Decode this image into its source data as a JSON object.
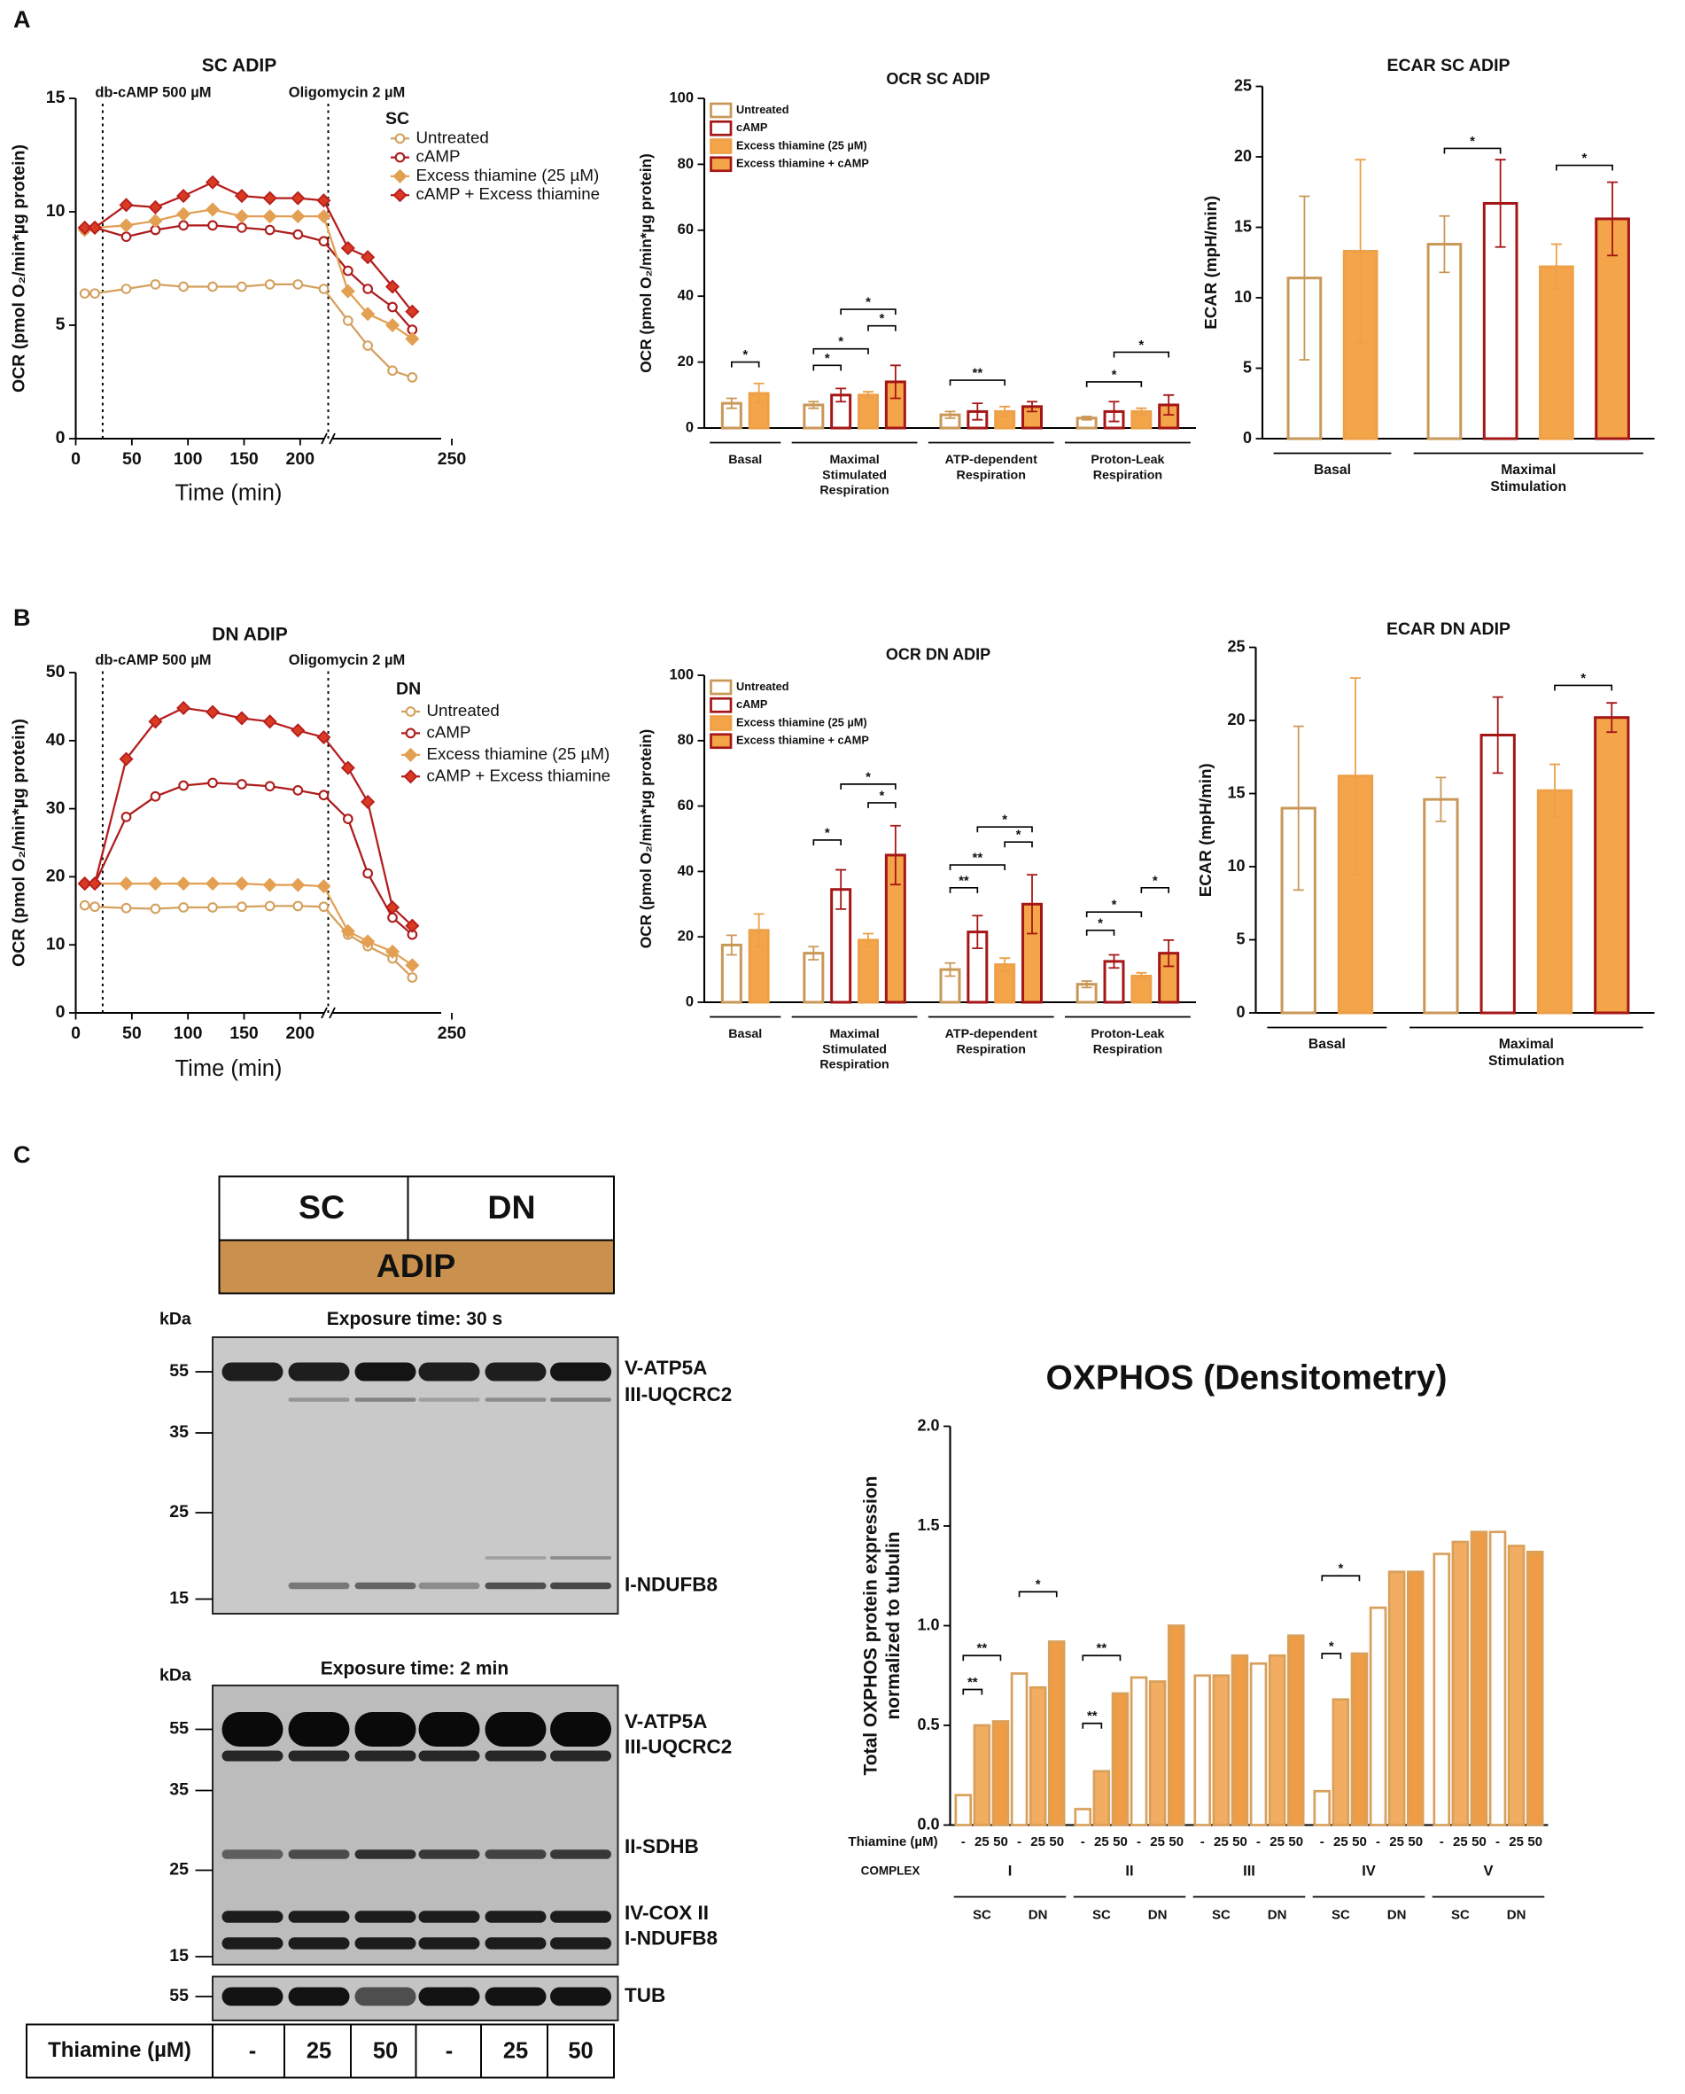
{
  "panel_labels": [
    "A",
    "B",
    "C"
  ],
  "chart_data": [
    {
      "type": "line",
      "title": "SC ADIP",
      "ylabel": "OCR (pmol O₂/min*µg protein)",
      "xlabel": "Time (min)",
      "legend_title": "SC",
      "x": [
        8,
        17,
        45,
        71,
        96,
        122,
        148,
        173,
        198,
        221,
        229,
        233,
        238,
        242
      ],
      "xlim": [
        0,
        250
      ],
      "xbreak": 225,
      "xticks": [
        0,
        50,
        100,
        150,
        200,
        250
      ],
      "ylim": [
        0,
        15
      ],
      "yticks": [
        0,
        5,
        10,
        15
      ],
      "annotations": [
        {
          "text": "db-cAMP 500 µM",
          "x": 24
        },
        {
          "text": "Oligomycin 2 µM",
          "x": 225
        }
      ],
      "series": [
        {
          "name": "Untreated",
          "color": "#d4a05e",
          "marker": "circle",
          "fill": "#ffffff",
          "values": [
            6.4,
            6.4,
            6.6,
            6.8,
            6.7,
            6.7,
            6.7,
            6.8,
            6.8,
            6.6,
            5.2,
            4.1,
            3.0,
            2.7
          ]
        },
        {
          "name": "cAMP",
          "color": "#ad1b1b",
          "marker": "circle",
          "fill": "#ffffff",
          "values": [
            9.2,
            9.3,
            8.9,
            9.2,
            9.4,
            9.4,
            9.3,
            9.2,
            9.0,
            8.7,
            7.4,
            6.6,
            5.8,
            4.8
          ]
        },
        {
          "name": "Excess thiamine (25 µM)",
          "color": "#e39f52",
          "marker": "diamond",
          "fill": "#e39f52",
          "values": [
            9.2,
            9.3,
            9.4,
            9.6,
            9.9,
            10.1,
            9.8,
            9.8,
            9.8,
            9.8,
            6.5,
            5.5,
            5.0,
            4.4
          ]
        },
        {
          "name": "cAMP + Excess thiamine",
          "color": "#b51d1d",
          "marker": "diamond",
          "fill": "#d93a22",
          "values": [
            9.3,
            9.3,
            10.3,
            10.2,
            10.7,
            11.3,
            10.7,
            10.6,
            10.6,
            10.5,
            8.4,
            8.0,
            6.7,
            5.6
          ]
        }
      ]
    },
    {
      "type": "bar",
      "title": "OCR SC ADIP",
      "ylabel": "OCR (pmol O₂/min*µg protein)",
      "legend": "upper left",
      "categories": [
        "Basal",
        "Maximal\nStimulated\nRespiration",
        "ATP-dependent\nRespiration",
        "Proton-Leak\nRespiration"
      ],
      "ylim": [
        0,
        100
      ],
      "yticks": [
        0,
        20,
        40,
        60,
        80,
        100
      ],
      "series": [
        {
          "name": "Untreated",
          "color": "#c99858",
          "fill": "#ffffff",
          "values": [
            7.5,
            7,
            4,
            3
          ],
          "errors": [
            1.5,
            1,
            1,
            0.5
          ]
        },
        {
          "name": "cAMP",
          "color": "#a51616",
          "fill": "#ffffff",
          "values": [
            null,
            10,
            5,
            5
          ],
          "errors": [
            null,
            2,
            2.5,
            3
          ]
        },
        {
          "name": "Excess thiamine (25 µM)",
          "color": "#eda048",
          "fill": "#f4a54a",
          "values": [
            10.5,
            10,
            5,
            5
          ],
          "errors": [
            3,
            1,
            1.5,
            1
          ]
        },
        {
          "name": "Excess thiamine + cAMP",
          "color": "#a51616",
          "fill": "#f4a54a",
          "values": [
            null,
            14,
            6.5,
            7
          ],
          "errors": [
            null,
            5,
            1.5,
            3
          ]
        }
      ],
      "significance": [
        {
          "label": "*",
          "category": 0,
          "series": [
            0,
            2
          ],
          "y": 20
        },
        {
          "label": "*",
          "category": 1,
          "series": [
            0,
            1
          ],
          "y": 19
        },
        {
          "label": "*",
          "category": 1,
          "series": [
            0,
            2
          ],
          "y": 24
        },
        {
          "label": "*",
          "category": 1,
          "series": [
            2,
            3
          ],
          "y": 31
        },
        {
          "label": "*",
          "category": 1,
          "series": [
            1,
            3
          ],
          "y": 36
        },
        {
          "label": "**",
          "category": 2,
          "series": [
            0,
            2
          ],
          "y": 14.5
        },
        {
          "label": "*",
          "category": 3,
          "series": [
            0,
            2
          ],
          "y": 14
        },
        {
          "label": "*",
          "category": 3,
          "series": [
            1,
            3
          ],
          "y": 23
        }
      ]
    },
    {
      "type": "bar",
      "title": "ECAR SC ADIP",
      "ylabel": "ECAR (mpH/min)",
      "categories": [
        "Basal",
        "Maximal\nStimulation"
      ],
      "ylim": [
        0,
        25
      ],
      "yticks": [
        0,
        5,
        10,
        15,
        20,
        25
      ],
      "series": [
        {
          "color": "#c99858",
          "fill": "#ffffff",
          "values": [
            11.4,
            13.8
          ],
          "errors": [
            5.8,
            2.0
          ]
        },
        {
          "color": "#a51616",
          "fill": "#ffffff",
          "values": [
            null,
            16.7
          ],
          "errors": [
            null,
            3.1
          ]
        },
        {
          "color": "#eda048",
          "fill": "#f4a54a",
          "values": [
            13.3,
            12.2
          ],
          "errors": [
            6.5,
            1.6
          ]
        },
        {
          "color": "#a51616",
          "fill": "#f4a54a",
          "values": [
            null,
            15.6
          ],
          "errors": [
            null,
            2.6
          ]
        }
      ],
      "significance": [
        {
          "label": "*",
          "category": 1,
          "series": [
            0,
            1
          ],
          "y": 20.6
        },
        {
          "label": "*",
          "category": 1,
          "series": [
            2,
            3
          ],
          "y": 19.4
        }
      ]
    },
    {
      "type": "line",
      "title": "DN ADIP",
      "ylabel": "OCR (pmol O₂/min*µg protein)",
      "xlabel": "Time (min)",
      "legend_title": "DN",
      "x": [
        8,
        17,
        45,
        71,
        96,
        122,
        148,
        173,
        198,
        221,
        229,
        233,
        238,
        242
      ],
      "xlim": [
        0,
        250
      ],
      "xbreak": 225,
      "xticks": [
        0,
        50,
        100,
        150,
        200,
        250
      ],
      "ylim": [
        0,
        50
      ],
      "yticks": [
        0,
        10,
        20,
        30,
        40,
        50
      ],
      "annotations": [
        {
          "text": "db-cAMP 500 µM",
          "x": 24
        },
        {
          "text": "Oligomycin 2 µM",
          "x": 225
        }
      ],
      "series": [
        {
          "name": "Untreated",
          "color": "#d4a05e",
          "marker": "circle",
          "fill": "#ffffff",
          "values": [
            15.8,
            15.6,
            15.4,
            15.3,
            15.5,
            15.5,
            15.6,
            15.7,
            15.7,
            15.6,
            11.5,
            9.8,
            8.0,
            5.2
          ]
        },
        {
          "name": "cAMP",
          "color": "#ad1b1b",
          "marker": "circle",
          "fill": "#ffffff",
          "values": [
            19,
            19,
            28.8,
            31.8,
            33.4,
            33.8,
            33.6,
            33.3,
            32.7,
            32.0,
            28.5,
            20.5,
            14.0,
            11.5
          ]
        },
        {
          "name": "Excess thiamine (25 µM)",
          "color": "#e39f52",
          "marker": "diamond",
          "fill": "#e39f52",
          "values": [
            19,
            19,
            19,
            19,
            19,
            19,
            19,
            18.8,
            18.8,
            18.6,
            12.0,
            10.5,
            9.0,
            7.0
          ]
        },
        {
          "name": "cAMP + Excess thiamine",
          "color": "#b51d1d",
          "marker": "diamond",
          "fill": "#d93a22",
          "values": [
            19,
            19,
            37.3,
            42.8,
            44.8,
            44.2,
            43.3,
            42.8,
            41.5,
            40.5,
            36.0,
            31.0,
            15.5,
            12.8
          ]
        }
      ]
    },
    {
      "type": "bar",
      "title": "OCR DN ADIP",
      "ylabel": "OCR (pmol O₂/min*µg protein)",
      "legend": "upper left",
      "categories": [
        "Basal",
        "Maximal\nStimulated\nRespiration",
        "ATP-dependent\nRespiration",
        "Proton-Leak\nRespiration"
      ],
      "ylim": [
        0,
        100
      ],
      "yticks": [
        0,
        20,
        40,
        60,
        80,
        100
      ],
      "series": [
        {
          "name": "Untreated",
          "color": "#c99858",
          "fill": "#ffffff",
          "values": [
            17.5,
            15,
            10,
            5.5
          ],
          "errors": [
            3,
            2,
            2,
            1
          ]
        },
        {
          "name": "cAMP",
          "color": "#a51616",
          "fill": "#ffffff",
          "values": [
            null,
            34.5,
            21.5,
            12.5
          ],
          "errors": [
            null,
            6,
            5,
            2
          ]
        },
        {
          "name": "Excess thiamine (25 µM)",
          "color": "#eda048",
          "fill": "#f4a54a",
          "values": [
            22,
            19,
            11.5,
            8
          ],
          "errors": [
            5,
            2,
            2,
            1
          ]
        },
        {
          "name": "Excess thiamine + cAMP",
          "color": "#a51616",
          "fill": "#f4a54a",
          "values": [
            null,
            45,
            30,
            15
          ],
          "errors": [
            null,
            9,
            9,
            4
          ]
        }
      ],
      "significance": [
        {
          "label": "*",
          "category": 1,
          "series": [
            0,
            1
          ],
          "y": 49.6
        },
        {
          "label": "*",
          "category": 1,
          "series": [
            2,
            3
          ],
          "y": 61
        },
        {
          "label": "*",
          "category": 1,
          "series": [
            1,
            3
          ],
          "y": 66.7
        },
        {
          "label": "**",
          "category": 2,
          "series": [
            0,
            1
          ],
          "y": 35
        },
        {
          "label": "**",
          "category": 2,
          "series": [
            0,
            2
          ],
          "y": 42
        },
        {
          "label": "*",
          "category": 2,
          "series": [
            2,
            3
          ],
          "y": 49
        },
        {
          "label": "*",
          "category": 2,
          "series": [
            1,
            3
          ],
          "y": 53.6
        },
        {
          "label": "*",
          "category": 3,
          "series": [
            0,
            1
          ],
          "y": 22
        },
        {
          "label": "*",
          "category": 3,
          "series": [
            0,
            2
          ],
          "y": 27.6
        },
        {
          "label": "*",
          "category": 3,
          "series": [
            2,
            3
          ],
          "y": 35
        }
      ]
    },
    {
      "type": "bar",
      "title": "ECAR DN ADIP",
      "ylabel": "ECAR (mpH/min)",
      "categories": [
        "Basal",
        "Maximal\nStimulation"
      ],
      "ylim": [
        0,
        25
      ],
      "yticks": [
        0,
        5,
        10,
        15,
        20,
        25
      ],
      "series": [
        {
          "color": "#c99858",
          "fill": "#ffffff",
          "values": [
            14,
            14.6
          ],
          "errors": [
            5.6,
            1.5
          ]
        },
        {
          "color": "#a51616",
          "fill": "#ffffff",
          "values": [
            null,
            19
          ],
          "errors": [
            null,
            2.6
          ]
        },
        {
          "color": "#eda048",
          "fill": "#f4a54a",
          "values": [
            16.2,
            15.2
          ],
          "errors": [
            6.7,
            1.8
          ]
        },
        {
          "color": "#a51616",
          "fill": "#f4a54a",
          "values": [
            null,
            20.2
          ],
          "errors": [
            null,
            1
          ]
        }
      ],
      "significance": [
        {
          "label": "*",
          "category": 1,
          "series": [
            2,
            3
          ],
          "y": 22.4
        }
      ]
    },
    {
      "type": "grouped_bar",
      "title": "OXPHOS (Densitometry)",
      "ylabel": "Total OXPHOS protein expression\nnormalized to tubulin",
      "dose_label": "Thiamine (µM)",
      "doses": [
        "-",
        "25",
        "50"
      ],
      "category_label": "COMPLEX",
      "groups": [
        "SC",
        "DN"
      ],
      "categories": [
        "I",
        "II",
        "III",
        "IV",
        "V"
      ],
      "ylim": [
        0,
        2
      ],
      "yticks": [
        {
          "value": 0,
          "label": "0.0"
        },
        0.5,
        {
          "value": 1,
          "label": "1.0"
        },
        1.5,
        {
          "value": 2,
          "label": "2.0"
        }
      ],
      "series": [
        {
          "color": "#d9a05b",
          "fill": "#ffffff",
          "values": [
            0.15,
            0.08,
            0.75,
            0.17,
            1.36
          ]
        },
        {
          "color": "#d9a05b",
          "fill": "#f2ad62",
          "values": [
            0.5,
            0.27,
            0.75,
            0.63,
            1.42
          ]
        },
        {
          "color": "#d9a05b",
          "fill": "#ee9c45",
          "values": [
            0.52,
            0.66,
            0.85,
            0.86,
            1.47
          ]
        },
        {
          "color": "#d9a05b",
          "fill": "#ffffff",
          "values": [
            0.76,
            0.74,
            0.81,
            1.09,
            1.47
          ]
        },
        {
          "color": "#d9a05b",
          "fill": "#f2ad62",
          "values": [
            0.69,
            0.72,
            0.85,
            1.27,
            1.4
          ]
        },
        {
          "color": "#d9a05b",
          "fill": "#ee9c45",
          "values": [
            0.92,
            1.0,
            0.95,
            1.27,
            1.37
          ]
        }
      ],
      "significance": [
        {
          "label": "**",
          "category": 0,
          "series": [
            0,
            1
          ],
          "y": 0.68
        },
        {
          "label": "**",
          "category": 0,
          "series": [
            0,
            2
          ],
          "y": 0.85
        },
        {
          "label": "*",
          "category": 0,
          "series": [
            3,
            5
          ],
          "y": 1.17
        },
        {
          "label": "**",
          "category": 1,
          "series": [
            0,
            1
          ],
          "y": 0.51
        },
        {
          "label": "**",
          "category": 1,
          "series": [
            0,
            2
          ],
          "y": 0.85
        },
        {
          "label": "*",
          "category": 3,
          "series": [
            0,
            1
          ],
          "y": 0.86
        },
        {
          "label": "*",
          "category": 3,
          "series": [
            0,
            2
          ],
          "y": 1.25
        }
      ]
    }
  ],
  "blot": {
    "header": [
      "SC",
      "DN"
    ],
    "tissue": "ADIP",
    "kda": "kDa",
    "panels": [
      {
        "title": "Exposure time: 30 s",
        "markers": [
          55,
          35,
          25,
          15
        ],
        "bands": [
          "V-ATP5A",
          "III-UQCRC2",
          "I-NDUFB8"
        ]
      },
      {
        "title": "Exposure time: 2 min",
        "markers": [
          55,
          35,
          25,
          15
        ],
        "bands": [
          "V-ATP5A",
          "III-UQCRC2",
          "II-SDHB",
          "IV-COX II",
          "I-NDUFB8"
        ]
      },
      {
        "markers": [
          55
        ],
        "bands": [
          "TUB"
        ]
      }
    ],
    "row_label": "Thiamine (µM)",
    "lanes": [
      "-",
      "25",
      "50",
      "-",
      "25",
      "50"
    ]
  }
}
